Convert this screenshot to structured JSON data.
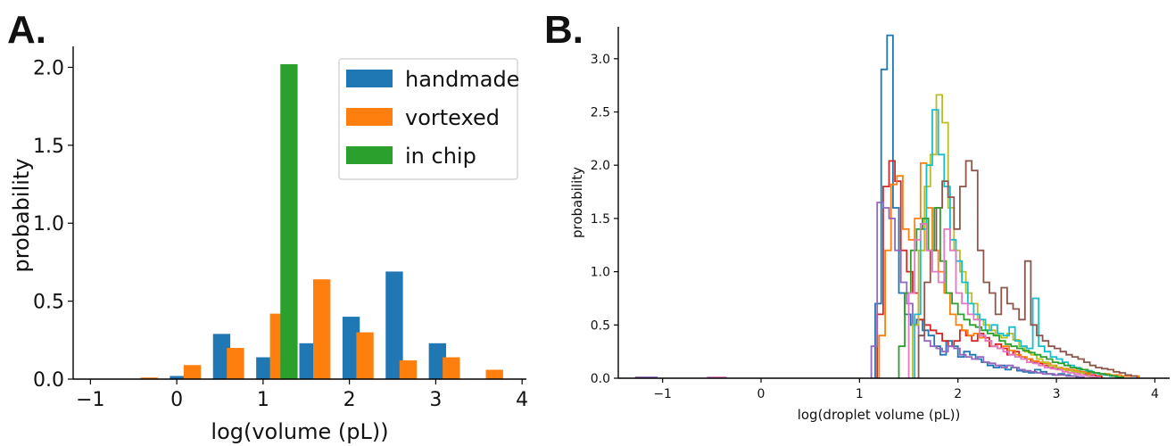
{
  "chart_data": [
    {
      "panel": "A.",
      "type": "bar",
      "xlabel": "log(volume (pL))",
      "ylabel": "probability",
      "xlim": [
        -1.2,
        4.05
      ],
      "ylim": [
        0,
        2.1
      ],
      "xticks": [
        -1,
        0,
        1,
        2,
        3,
        4
      ],
      "yticks": [
        0.0,
        0.5,
        1.0,
        1.5,
        2.0
      ],
      "legend_position": "top-right",
      "colors": {
        "handmade": "#1f77b4",
        "vortexed": "#ff7f0e",
        "in chip": "#2ca02c"
      },
      "series": [
        {
          "name": "handmade",
          "x": [
            0.02,
            0.52,
            1.02,
            1.52,
            2.02,
            2.52,
            3.02
          ],
          "values": [
            0.02,
            0.29,
            0.14,
            0.23,
            0.4,
            0.69,
            0.23
          ]
        },
        {
          "name": "vortexed",
          "x": [
            -0.32,
            0.18,
            0.68,
            1.18,
            1.68,
            2.18,
            2.68,
            3.18,
            3.68
          ],
          "values": [
            0.01,
            0.09,
            0.2,
            0.42,
            0.64,
            0.3,
            0.12,
            0.14,
            0.06
          ]
        },
        {
          "name": "in chip",
          "x": [
            1.3
          ],
          "values": [
            2.02
          ]
        }
      ]
    },
    {
      "panel": "B.",
      "type": "line",
      "style": "step-histogram",
      "xlabel": "log(droplet volume (pL))",
      "ylabel": "probability",
      "xlim": [
        -1.45,
        4.15
      ],
      "ylim": [
        0,
        3.3
      ],
      "xticks": [
        -1,
        0,
        1,
        2,
        3,
        4
      ],
      "yticks": [
        0.0,
        0.5,
        1.0,
        1.5,
        2.0,
        2.5,
        3.0
      ],
      "series": [
        {
          "color": "#1f77b4",
          "x": [
            1.16,
            1.22,
            1.28,
            1.34,
            1.4,
            1.46,
            1.52,
            1.58,
            1.64,
            1.7,
            1.76,
            1.82,
            1.88,
            1.94,
            2.0,
            2.06,
            2.12,
            2.18,
            2.24,
            2.3,
            2.36,
            2.42,
            2.48,
            2.54,
            2.6,
            2.66,
            2.72,
            2.78,
            2.84,
            2.9,
            2.96,
            3.02,
            3.08,
            3.14,
            3.2
          ],
          "values": [
            0.7,
            2.9,
            3.22,
            1.6,
            0.8,
            0.6,
            0.5,
            0.55,
            0.45,
            0.4,
            0.3,
            0.22,
            0.35,
            0.3,
            0.2,
            0.25,
            0.22,
            0.18,
            0.15,
            0.12,
            0.1,
            0.12,
            0.08,
            0.1,
            0.07,
            0.06,
            0.05,
            0.08,
            0.06,
            0.04,
            0.03,
            0.04,
            0.03,
            0.02,
            0.01
          ]
        },
        {
          "color": "#d62728",
          "x": [
            1.18,
            1.24,
            1.3,
            1.36,
            1.42,
            1.48,
            1.54,
            1.6,
            1.66,
            1.72,
            1.78,
            1.84,
            1.9,
            1.96,
            2.02,
            2.08,
            2.14,
            2.2,
            2.26,
            2.32,
            2.38,
            2.44,
            2.5,
            2.56,
            2.62,
            2.68,
            2.74,
            2.8,
            2.86,
            2.92,
            2.98,
            3.04,
            3.1,
            3.16,
            3.22,
            3.28,
            3.34,
            3.4
          ],
          "values": [
            0.6,
            1.8,
            2.04,
            1.85,
            1.2,
            1.0,
            0.8,
            0.55,
            0.5,
            0.45,
            0.42,
            0.35,
            0.3,
            0.35,
            0.45,
            0.4,
            0.35,
            0.42,
            0.38,
            0.3,
            0.32,
            0.28,
            0.22,
            0.25,
            0.2,
            0.18,
            0.15,
            0.14,
            0.12,
            0.1,
            0.09,
            0.08,
            0.07,
            0.06,
            0.05,
            0.04,
            0.03,
            0.02
          ]
        },
        {
          "color": "#ff7f0e",
          "x": [
            1.2,
            1.26,
            1.32,
            1.38,
            1.44,
            1.5,
            1.56,
            1.62,
            1.68,
            1.74,
            1.8,
            1.86,
            1.92,
            1.98,
            2.04,
            2.1,
            2.16,
            2.22,
            2.28,
            2.34,
            2.4,
            2.46,
            2.52,
            2.58,
            2.64,
            2.7,
            2.76,
            2.82,
            2.88,
            2.94,
            3.0,
            3.06,
            3.12,
            3.18,
            3.24,
            3.3,
            3.36,
            3.42,
            3.48,
            3.54,
            3.6,
            3.66,
            3.72,
            3.78
          ],
          "values": [
            0.4,
            1.2,
            1.82,
            1.9,
            1.4,
            1.3,
            1.5,
            2.02,
            1.6,
            1.2,
            1.0,
            0.8,
            0.6,
            0.5,
            0.45,
            0.4,
            0.42,
            0.38,
            0.35,
            0.3,
            0.28,
            0.3,
            0.26,
            0.22,
            0.2,
            0.18,
            0.16,
            0.15,
            0.14,
            0.12,
            0.1,
            0.09,
            0.08,
            0.07,
            0.06,
            0.05,
            0.05,
            0.04,
            0.04,
            0.03,
            0.03,
            0.02,
            0.02,
            0.02
          ]
        },
        {
          "color": "#9467bd",
          "x": [
            1.12,
            1.18,
            1.24,
            1.3,
            1.36,
            1.42,
            1.48,
            1.54,
            1.6,
            1.66,
            1.72,
            1.78,
            1.84,
            1.9,
            1.96,
            2.02,
            2.08,
            2.14,
            2.2,
            2.26,
            2.32,
            2.38,
            2.44,
            2.5,
            2.56,
            2.62,
            2.68,
            2.74,
            2.8,
            2.86,
            2.92,
            2.98,
            3.04,
            3.1,
            3.16,
            3.22
          ],
          "values": [
            0.3,
            1.65,
            1.6,
            1.5,
            1.2,
            0.9,
            0.7,
            0.5,
            0.4,
            0.35,
            0.3,
            0.28,
            0.25,
            0.3,
            0.28,
            0.22,
            0.2,
            0.18,
            0.2,
            0.15,
            0.14,
            0.12,
            0.1,
            0.12,
            0.1,
            0.08,
            0.07,
            0.06,
            0.05,
            0.04,
            0.04,
            0.03,
            0.03,
            0.02,
            0.02,
            0.01
          ]
        },
        {
          "color": "#bcbd22",
          "x": [
            1.54,
            1.6,
            1.66,
            1.72,
            1.78,
            1.84,
            1.9,
            1.96,
            2.02,
            2.08,
            2.14,
            2.2,
            2.26,
            2.32,
            2.38,
            2.44,
            2.5,
            2.56,
            2.62,
            2.68,
            2.74,
            2.8,
            2.86,
            2.92,
            2.98,
            3.04,
            3.1,
            3.16,
            3.22,
            3.28
          ],
          "values": [
            0.5,
            1.2,
            1.8,
            2.1,
            2.66,
            2.4,
            1.6,
            1.2,
            1.0,
            0.8,
            0.7,
            0.55,
            0.5,
            0.45,
            0.4,
            0.38,
            0.42,
            0.36,
            0.3,
            0.25,
            0.22,
            0.18,
            0.15,
            0.12,
            0.1,
            0.08,
            0.07,
            0.06,
            0.05,
            0.03
          ]
        },
        {
          "color": "#17becf",
          "x": [
            1.56,
            1.62,
            1.68,
            1.74,
            1.8,
            1.86,
            1.92,
            1.98,
            2.04,
            2.1,
            2.16,
            2.22,
            2.28,
            2.34,
            2.4,
            2.46,
            2.52,
            2.58,
            2.64,
            2.7,
            2.76,
            2.82,
            2.88,
            2.94,
            3.0,
            3.06,
            3.12,
            3.18,
            3.24,
            3.3,
            3.36,
            3.42,
            3.48,
            3.54,
            3.6
          ],
          "values": [
            0.6,
            1.4,
            2.0,
            2.52,
            2.1,
            1.8,
            1.3,
            1.1,
            0.9,
            0.7,
            0.6,
            0.55,
            0.45,
            0.5,
            0.42,
            0.4,
            0.48,
            0.35,
            0.3,
            0.28,
            0.75,
            0.3,
            0.25,
            0.2,
            0.18,
            0.15,
            0.12,
            0.1,
            0.08,
            0.07,
            0.05,
            0.04,
            0.03,
            0.02,
            0.01
          ]
        },
        {
          "color": "#8c564b",
          "x": [
            1.6,
            1.66,
            1.72,
            1.78,
            1.84,
            1.9,
            1.96,
            2.02,
            2.08,
            2.14,
            2.2,
            2.26,
            2.32,
            2.38,
            2.44,
            2.5,
            2.56,
            2.62,
            2.68,
            2.74,
            2.8,
            2.86,
            2.92,
            2.98,
            3.04,
            3.1,
            3.16,
            3.22,
            3.28,
            3.34,
            3.4,
            3.46,
            3.52,
            3.58,
            3.64,
            3.7,
            3.76
          ],
          "values": [
            0.4,
            0.9,
            1.2,
            1.6,
            1.85,
            1.7,
            1.4,
            1.8,
            2.04,
            1.95,
            1.2,
            0.9,
            0.8,
            0.6,
            0.85,
            0.7,
            0.65,
            0.55,
            1.1,
            0.5,
            0.4,
            0.35,
            0.3,
            0.28,
            0.25,
            0.22,
            0.2,
            0.18,
            0.15,
            0.12,
            0.1,
            0.09,
            0.08,
            0.06,
            0.05,
            0.03,
            0.02
          ]
        },
        {
          "color": "#2ca02c",
          "x": [
            1.4,
            1.46,
            1.52,
            1.58,
            1.64,
            1.7,
            1.76,
            1.82,
            1.88,
            1.94,
            2.0,
            2.06,
            2.12,
            2.18,
            2.24,
            2.3,
            2.36,
            2.42,
            2.48,
            2.54,
            2.6,
            2.66,
            2.72,
            2.78,
            2.84,
            2.9,
            2.96,
            3.02,
            3.08,
            3.14,
            3.2,
            3.26,
            3.32,
            3.38,
            3.44,
            3.5,
            3.56,
            3.62
          ],
          "values": [
            0.3,
            0.8,
            1.2,
            1.4,
            1.5,
            1.2,
            1.6,
            1.1,
            0.8,
            0.7,
            0.6,
            0.55,
            0.5,
            0.48,
            0.45,
            0.42,
            0.4,
            0.35,
            0.32,
            0.3,
            0.28,
            0.26,
            0.24,
            0.22,
            0.2,
            0.18,
            0.15,
            0.14,
            0.12,
            0.1,
            0.09,
            0.08,
            0.06,
            0.05,
            0.04,
            0.03,
            0.02,
            0.01
          ]
        },
        {
          "color": "#e377c2",
          "x": [
            1.5,
            1.56,
            1.62,
            1.68,
            1.74,
            1.8,
            1.86,
            1.92,
            1.98,
            2.04,
            2.1,
            2.16,
            2.22,
            2.28,
            2.34,
            2.4,
            2.46,
            2.52,
            2.58,
            2.64,
            2.7,
            2.76,
            2.82,
            2.88,
            2.94,
            3.0,
            3.06,
            3.12,
            3.18,
            3.24,
            3.3,
            3.36
          ],
          "values": [
            0.8,
            1.3,
            1.45,
            1.2,
            1.0,
            0.9,
            1.4,
            1.2,
            0.8,
            0.7,
            0.6,
            0.55,
            0.4,
            0.35,
            0.3,
            0.28,
            0.25,
            0.22,
            0.2,
            0.18,
            0.15,
            0.14,
            0.12,
            0.1,
            0.09,
            0.08,
            0.06,
            0.05,
            0.04,
            0.03,
            0.02,
            0.01
          ]
        }
      ]
    }
  ]
}
